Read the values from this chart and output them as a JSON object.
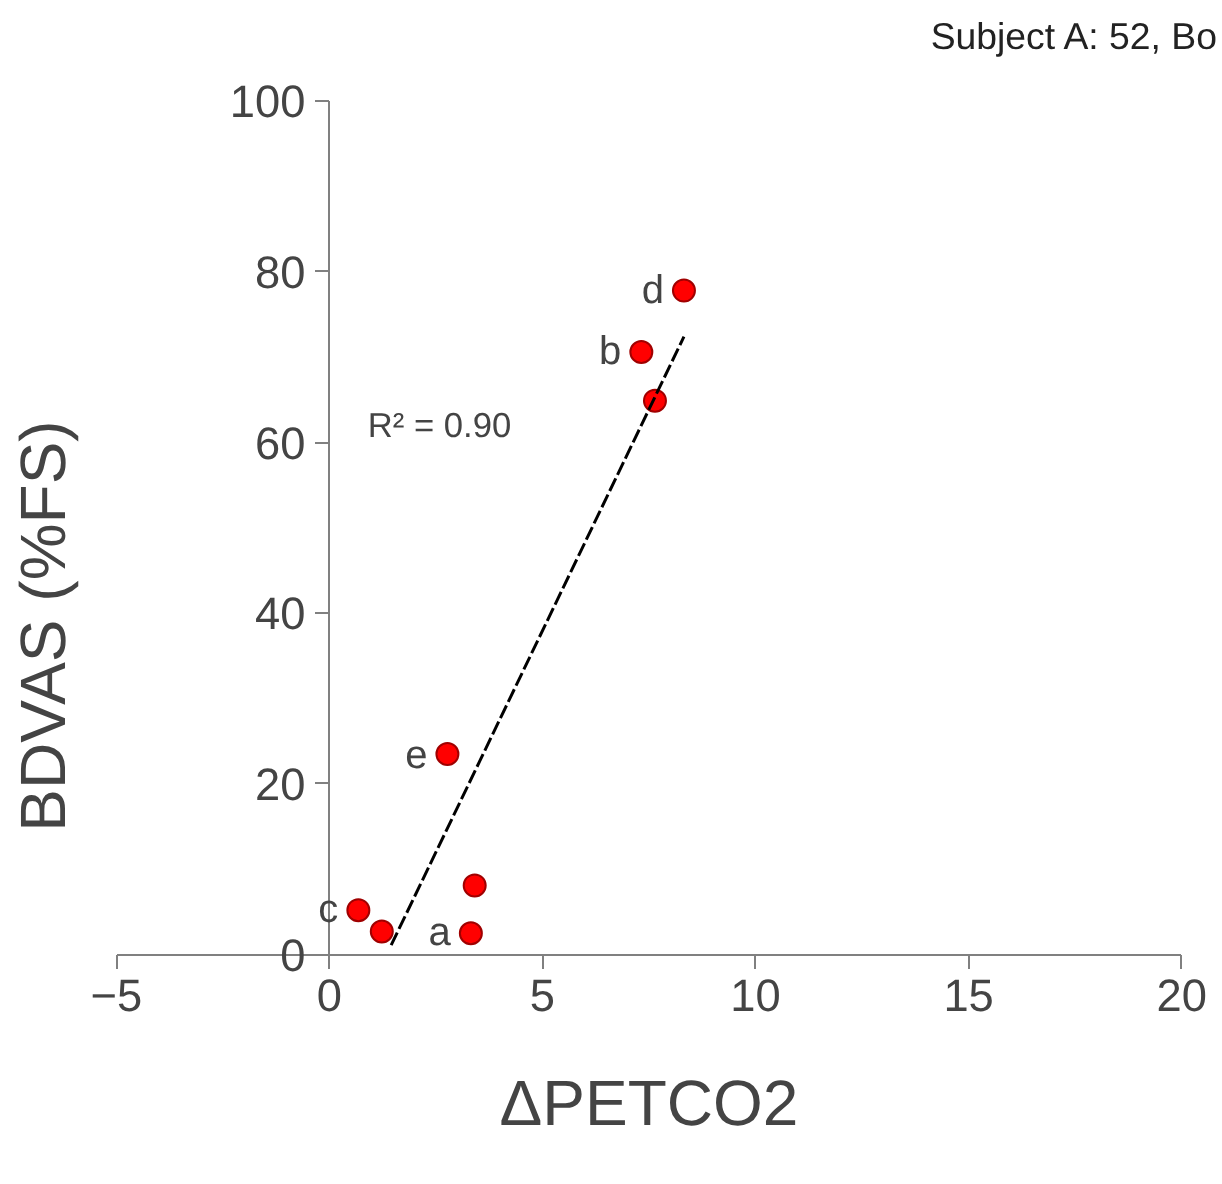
{
  "chart_data": {
    "type": "scatter",
    "xlabel": "ΔPETCO2",
    "ylabel": "BDVAS (%FS)",
    "x": [
      0.68,
      1.23,
      3.41,
      3.32,
      2.77,
      7.64,
      7.32,
      8.32
    ],
    "series": [
      {
        "color": "#ff0000",
        "values": [
          5.2,
          2.7,
          8.1,
          2.5,
          23.5,
          64.9,
          70.6,
          77.8
        ]
      },
      {
        "type": "line",
        "line_style": "dashed",
        "color": "#000000",
        "x": [
          1.45,
          8.32
        ],
        "values": [
          1.1,
          72.4
        ],
        "marker": "none"
      }
    ],
    "marker": "circle",
    "grid": false,
    "xlim": [
      -5,
      20
    ],
    "ylim": [
      0,
      100
    ],
    "xticks": [
      -5,
      0,
      5,
      10,
      15,
      20
    ],
    "yticks": [
      0,
      20,
      40,
      60,
      80,
      100
    ],
    "annotations": [
      "Subject A: 52, Bo",
      "R² = 0.90",
      {
        "text": "c",
        "x": 0.68,
        "y": 5.2
      },
      {
        "text": "a",
        "x": 3.32,
        "y": 2.5
      },
      {
        "text": "e",
        "x": 2.77,
        "y": 23.5
      },
      {
        "text": "b",
        "x": 7.32,
        "y": 70.6
      },
      {
        "text": "d",
        "x": 8.32,
        "y": 77.8
      }
    ]
  }
}
